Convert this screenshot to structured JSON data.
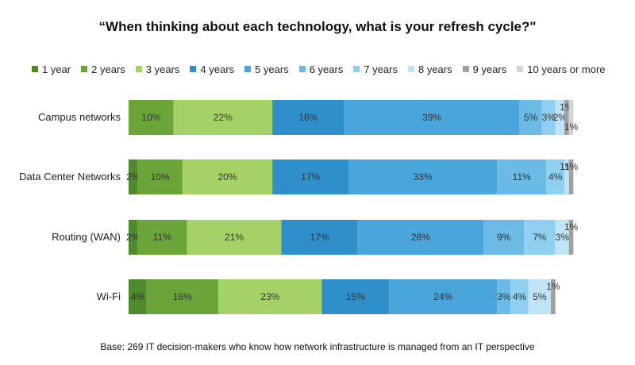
{
  "chart_data": {
    "type": "bar",
    "orientation": "horizontal-stacked-100",
    "title": "“When thinking about each technology, what is your refresh cycle?\"",
    "categories": [
      "Campus networks",
      "Data Center Networks",
      "Routing (WAN)",
      "Wi-Fi"
    ],
    "series": [
      {
        "name": "1 year",
        "color": "#4f8a2c",
        "values": [
          0,
          2,
          2,
          4
        ],
        "labels": [
          "",
          "2%",
          "2%",
          "4%"
        ]
      },
      {
        "name": "2 years",
        "color": "#6ba53a",
        "values": [
          10,
          10,
          11,
          16
        ],
        "labels": [
          "10%",
          "10%",
          "11%",
          "16%"
        ]
      },
      {
        "name": "3 years",
        "color": "#a5d266",
        "values": [
          22,
          20,
          21,
          23
        ],
        "labels": [
          "22%",
          "20%",
          "21%",
          "23%"
        ]
      },
      {
        "name": "4 years",
        "color": "#2f8fcb",
        "values": [
          16,
          17,
          17,
          15
        ],
        "labels": [
          "16%",
          "17%",
          "17%",
          "15%"
        ]
      },
      {
        "name": "5 years",
        "color": "#49a5da",
        "values": [
          39,
          33,
          28,
          24
        ],
        "labels": [
          "39%",
          "33%",
          "28%",
          "24%"
        ]
      },
      {
        "name": "6 years",
        "color": "#6bbbe6",
        "values": [
          5,
          11,
          9,
          3
        ],
        "labels": [
          "5%",
          "11%",
          "9%",
          "3%"
        ]
      },
      {
        "name": "7 years",
        "color": "#8fcfef",
        "values": [
          3,
          4,
          7,
          4
        ],
        "labels": [
          "3%",
          "4%",
          "7%",
          "4%"
        ]
      },
      {
        "name": "8 years",
        "color": "#bfe4f7",
        "values": [
          2,
          1,
          3,
          5
        ],
        "labels": [
          "2%",
          "1%",
          "3%",
          "5%"
        ]
      },
      {
        "name": "9 years",
        "color": "#a0a0a0",
        "values": [
          1,
          1,
          1,
          1
        ],
        "labels": [
          "1%",
          "1%",
          "1%",
          "1%"
        ]
      },
      {
        "name": "10 years or more",
        "color": "#d4d4d4",
        "values": [
          1,
          0,
          0,
          0
        ],
        "labels": [
          "1%",
          "",
          "",
          ""
        ]
      }
    ],
    "xlim": [
      0,
      100
    ],
    "legend_position": "top",
    "grid": false
  },
  "footnote": "Base: 269 IT decision-makers who know how network infrastructure is managed from an IT perspective"
}
